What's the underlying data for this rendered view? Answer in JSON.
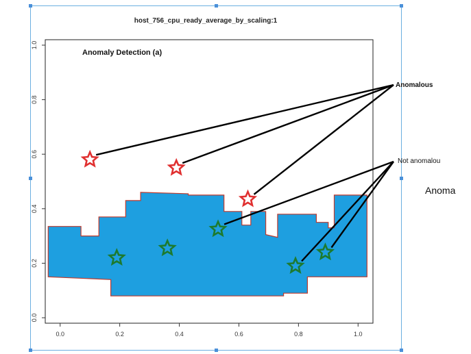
{
  "chart_data": {
    "type": "scatter",
    "title": "host_756_cpu_ready_average_by_scaling:1",
    "subtitle": "Anomaly Detection (a)",
    "xlabel": "",
    "ylabel": "",
    "xlim": [
      -0.05,
      1.05
    ],
    "ylim": [
      -0.02,
      1.02
    ],
    "x_ticks": [
      "0.0",
      "0.2",
      "0.4",
      "0.6",
      "0.8",
      "1.0"
    ],
    "y_ticks": [
      "0.0",
      "0.2",
      "0.4",
      "0.6",
      "0.8",
      "1.0"
    ],
    "grid": false,
    "normal_region": {
      "color": "#1e9fe0",
      "outline_color": "#c0392b",
      "polygon": [
        [
          -0.04,
          0.335
        ],
        [
          0.07,
          0.335
        ],
        [
          0.07,
          0.3
        ],
        [
          0.13,
          0.3
        ],
        [
          0.13,
          0.37
        ],
        [
          0.22,
          0.37
        ],
        [
          0.22,
          0.43
        ],
        [
          0.27,
          0.43
        ],
        [
          0.27,
          0.46
        ],
        [
          0.43,
          0.455
        ],
        [
          0.43,
          0.45
        ],
        [
          0.55,
          0.45
        ],
        [
          0.55,
          0.39
        ],
        [
          0.61,
          0.39
        ],
        [
          0.61,
          0.34
        ],
        [
          0.64,
          0.34
        ],
        [
          0.64,
          0.39
        ],
        [
          0.69,
          0.39
        ],
        [
          0.69,
          0.305
        ],
        [
          0.73,
          0.295
        ],
        [
          0.73,
          0.38
        ],
        [
          0.86,
          0.38
        ],
        [
          0.86,
          0.35
        ],
        [
          0.9,
          0.35
        ],
        [
          0.9,
          0.33
        ],
        [
          0.92,
          0.33
        ],
        [
          0.92,
          0.45
        ],
        [
          1.03,
          0.45
        ],
        [
          1.03,
          0.15
        ],
        [
          0.83,
          0.15
        ],
        [
          0.83,
          0.09
        ],
        [
          0.75,
          0.09
        ],
        [
          0.75,
          0.08
        ],
        [
          0.17,
          0.08
        ],
        [
          0.17,
          0.14
        ],
        [
          -0.04,
          0.15
        ]
      ]
    },
    "series": [
      {
        "name": "Anomalous",
        "color": "#e03030",
        "marker": "star",
        "points": [
          [
            0.1,
            0.58
          ],
          [
            0.39,
            0.55
          ],
          [
            0.63,
            0.435
          ]
        ]
      },
      {
        "name": "Not anomalous",
        "color": "#1d7a2e",
        "marker": "star",
        "points": [
          [
            0.19,
            0.22
          ],
          [
            0.36,
            0.255
          ],
          [
            0.53,
            0.325
          ],
          [
            0.79,
            0.19
          ],
          [
            0.89,
            0.24
          ]
        ]
      }
    ],
    "annotations": [
      {
        "label": "Anomalous",
        "targets": [
          0,
          1,
          2
        ],
        "series": 0
      },
      {
        "label": "Not anomalou",
        "targets": [
          2,
          3,
          4
        ],
        "series": 1
      }
    ],
    "side_text": "Anoma"
  }
}
